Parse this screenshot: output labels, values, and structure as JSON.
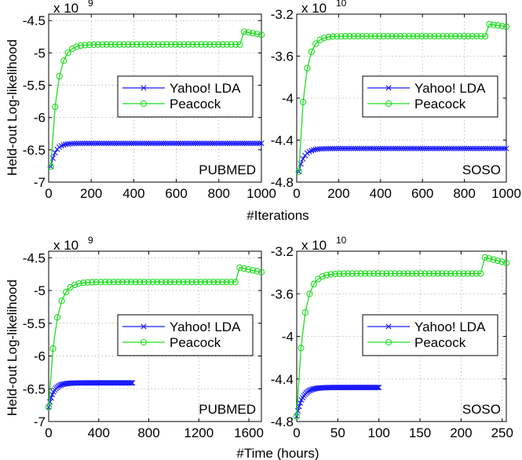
{
  "figure": {
    "ylabel": "Held-out Log-likelihood",
    "xlabel_top": "#Iterations",
    "xlabel_bottom": "#Time (hours)"
  },
  "colors": {
    "yahoo": "#1a1aff",
    "peacock": "#22dd22"
  },
  "chart_data": [
    {
      "type": "line",
      "id": "p1",
      "dataset_label": "PUBMED",
      "exponent": "x 10",
      "exponent_power": "9",
      "xlim": [
        0,
        1000
      ],
      "ylim": [
        -7,
        -4.4
      ],
      "xticks": [
        0,
        200,
        400,
        600,
        800,
        1000
      ],
      "xticklabels": [
        "0",
        "200",
        "400",
        "600",
        "800",
        "1000"
      ],
      "yticks": [
        -7,
        -6.5,
        -6,
        -5.5,
        -5,
        -4.5
      ],
      "yticklabels": [
        "-7",
        "-6.5",
        "-6",
        "-5.5",
        "-5",
        "-4.5"
      ],
      "legend": [
        "Yahoo! LDA",
        "Peacock"
      ],
      "series": [
        {
          "name": "Yahoo! LDA",
          "marker": "x",
          "x_start": 10,
          "x_end": 1000,
          "points": 100,
          "y_start": -6.76,
          "y_final": -6.4,
          "tau": 22,
          "jump_x": null,
          "jump_to": null,
          "decay_to": null
        },
        {
          "name": "Peacock",
          "marker": "o",
          "x_start": 10,
          "x_end": 1000,
          "points": 50,
          "y_start": -6.76,
          "y_final": -4.87,
          "tau": 30,
          "jump_x": 900,
          "jump_to": -4.66,
          "decay_to": -4.72
        }
      ]
    },
    {
      "type": "line",
      "id": "p2",
      "dataset_label": "SOSO",
      "exponent": "x 10",
      "exponent_power": "10",
      "xlim": [
        0,
        1000
      ],
      "ylim": [
        -4.8,
        -3.2
      ],
      "xticks": [
        0,
        200,
        400,
        600,
        800,
        1000
      ],
      "xticklabels": [
        "0",
        "200",
        "400",
        "600",
        "800",
        "1000"
      ],
      "yticks": [
        -4.8,
        -4.4,
        -4,
        -3.6,
        -3.2
      ],
      "yticklabels": [
        "-4.8",
        "-4.4",
        "-4",
        "-3.6",
        "-3.2"
      ],
      "legend": [
        "Yahoo! LDA",
        "Peacock"
      ],
      "series": [
        {
          "name": "Yahoo! LDA",
          "marker": "x",
          "x_start": 10,
          "x_end": 1000,
          "points": 100,
          "y_start": -4.7,
          "y_final": -4.48,
          "tau": 25,
          "jump_x": null,
          "jump_to": null,
          "decay_to": null
        },
        {
          "name": "Peacock",
          "marker": "o",
          "x_start": 10,
          "x_end": 1000,
          "points": 50,
          "y_start": -4.7,
          "y_final": -3.41,
          "tau": 28,
          "jump_x": 900,
          "jump_to": -3.29,
          "decay_to": -3.32
        }
      ]
    },
    {
      "type": "line",
      "id": "p3",
      "dataset_label": "PUBMED",
      "exponent": "x 10",
      "exponent_power": "9",
      "xlim": [
        0,
        1700
      ],
      "ylim": [
        -7,
        -4.4
      ],
      "xticks": [
        0,
        400,
        800,
        1200,
        1600
      ],
      "xticklabels": [
        "0",
        "400",
        "800",
        "1200",
        "1600"
      ],
      "yticks": [
        -7,
        -6.5,
        -6,
        -5.5,
        -5,
        -4.5
      ],
      "yticklabels": [
        "-7",
        "-6.5",
        "-6",
        "-5.5",
        "-5",
        "-4.5"
      ],
      "legend": [
        "Yahoo! LDA",
        "Peacock"
      ],
      "series": [
        {
          "name": "Yahoo! LDA",
          "marker": "x",
          "x_start": 0,
          "x_end": 670,
          "points": 70,
          "y_start": -6.78,
          "y_final": -6.41,
          "tau": 40,
          "jump_x": null,
          "jump_to": null,
          "decay_to": null
        },
        {
          "name": "Peacock",
          "marker": "o",
          "x_start": 0,
          "x_end": 1700,
          "points": 50,
          "y_start": -6.78,
          "y_final": -4.87,
          "tau": 55,
          "jump_x": 1500,
          "jump_to": -4.64,
          "decay_to": -4.72
        }
      ]
    },
    {
      "type": "line",
      "id": "p4",
      "dataset_label": "SOSO",
      "exponent": "x 10",
      "exponent_power": "10",
      "xlim": [
        0,
        255
      ],
      "ylim": [
        -4.8,
        -3.2
      ],
      "xticks": [
        0,
        50,
        100,
        150,
        200,
        250
      ],
      "xticklabels": [
        "0",
        "50",
        "100",
        "150",
        "200",
        "250"
      ],
      "yticks": [
        -4.8,
        -4.4,
        -4,
        -3.6,
        -3.2
      ],
      "yticklabels": [
        "-4.8",
        "-4.4",
        "-4",
        "-3.6",
        "-3.2"
      ],
      "legend": [
        "Yahoo! LDA",
        "Peacock"
      ],
      "series": [
        {
          "name": "Yahoo! LDA",
          "marker": "x",
          "x_start": 0,
          "x_end": 100,
          "points": 70,
          "y_start": -4.75,
          "y_final": -4.48,
          "tau": 7,
          "jump_x": null,
          "jump_to": null,
          "decay_to": null
        },
        {
          "name": "Peacock",
          "marker": "o",
          "x_start": 0,
          "x_end": 255,
          "points": 50,
          "y_start": -4.75,
          "y_final": -3.41,
          "tau": 8,
          "jump_x": 225,
          "jump_to": -3.25,
          "decay_to": -3.31
        }
      ]
    }
  ]
}
